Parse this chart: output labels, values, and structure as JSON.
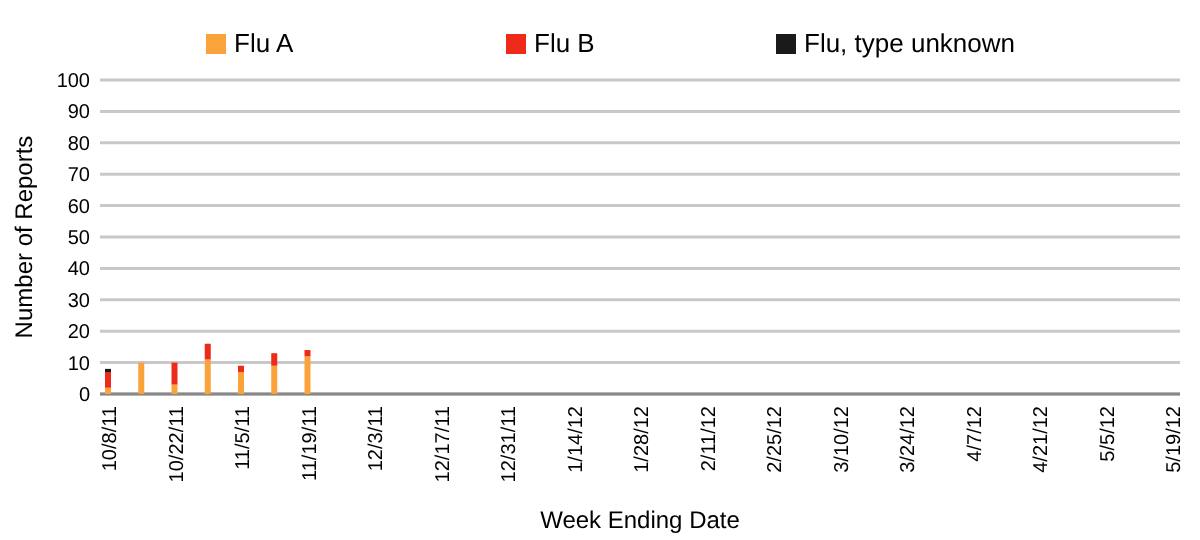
{
  "chart_data": {
    "type": "bar",
    "stacked": true,
    "xlabel": "Week Ending Date",
    "ylabel": "Number of Reports",
    "categories": [
      "10/8/11",
      null,
      "10/22/11",
      null,
      "11/5/11",
      null,
      "11/19/11",
      null,
      "12/3/11",
      null,
      "12/17/11",
      null,
      "12/31/11",
      null,
      "1/14/12",
      null,
      "1/28/12",
      null,
      "2/11/12",
      null,
      "2/25/12",
      null,
      "3/10/12",
      null,
      "3/24/12",
      null,
      "4/7/12",
      null,
      "4/21/12",
      null,
      "5/5/12",
      null,
      "5/19/12"
    ],
    "series": [
      {
        "name": "Flu A",
        "color": "#f9a33a",
        "values": [
          2,
          10,
          3,
          11,
          7,
          9,
          12,
          null,
          null,
          null,
          null,
          null,
          null,
          null,
          null,
          null,
          null,
          null,
          null,
          null,
          null,
          null,
          null,
          null,
          null,
          null,
          null,
          null,
          null,
          null,
          null,
          null,
          null
        ]
      },
      {
        "name": "Flu B",
        "color": "#ee2a1b",
        "values": [
          5,
          null,
          7,
          5,
          2,
          4,
          2,
          null,
          null,
          null,
          null,
          null,
          null,
          null,
          null,
          null,
          null,
          null,
          null,
          null,
          null,
          null,
          null,
          null,
          null,
          null,
          null,
          null,
          null,
          null,
          null,
          null,
          null
        ]
      },
      {
        "name": "Flu, type unknown",
        "color": "#1a1a1a",
        "values": [
          1,
          null,
          null,
          null,
          null,
          null,
          null,
          null,
          null,
          null,
          null,
          null,
          null,
          null,
          null,
          null,
          null,
          null,
          null,
          null,
          null,
          null,
          null,
          null,
          null,
          null,
          null,
          null,
          null,
          null,
          null,
          null,
          null
        ]
      }
    ],
    "ylim": [
      0,
      100
    ],
    "yticks": [
      0,
      10,
      20,
      30,
      40,
      50,
      60,
      70,
      80,
      90,
      100
    ],
    "grid": "y",
    "legend": "top"
  }
}
